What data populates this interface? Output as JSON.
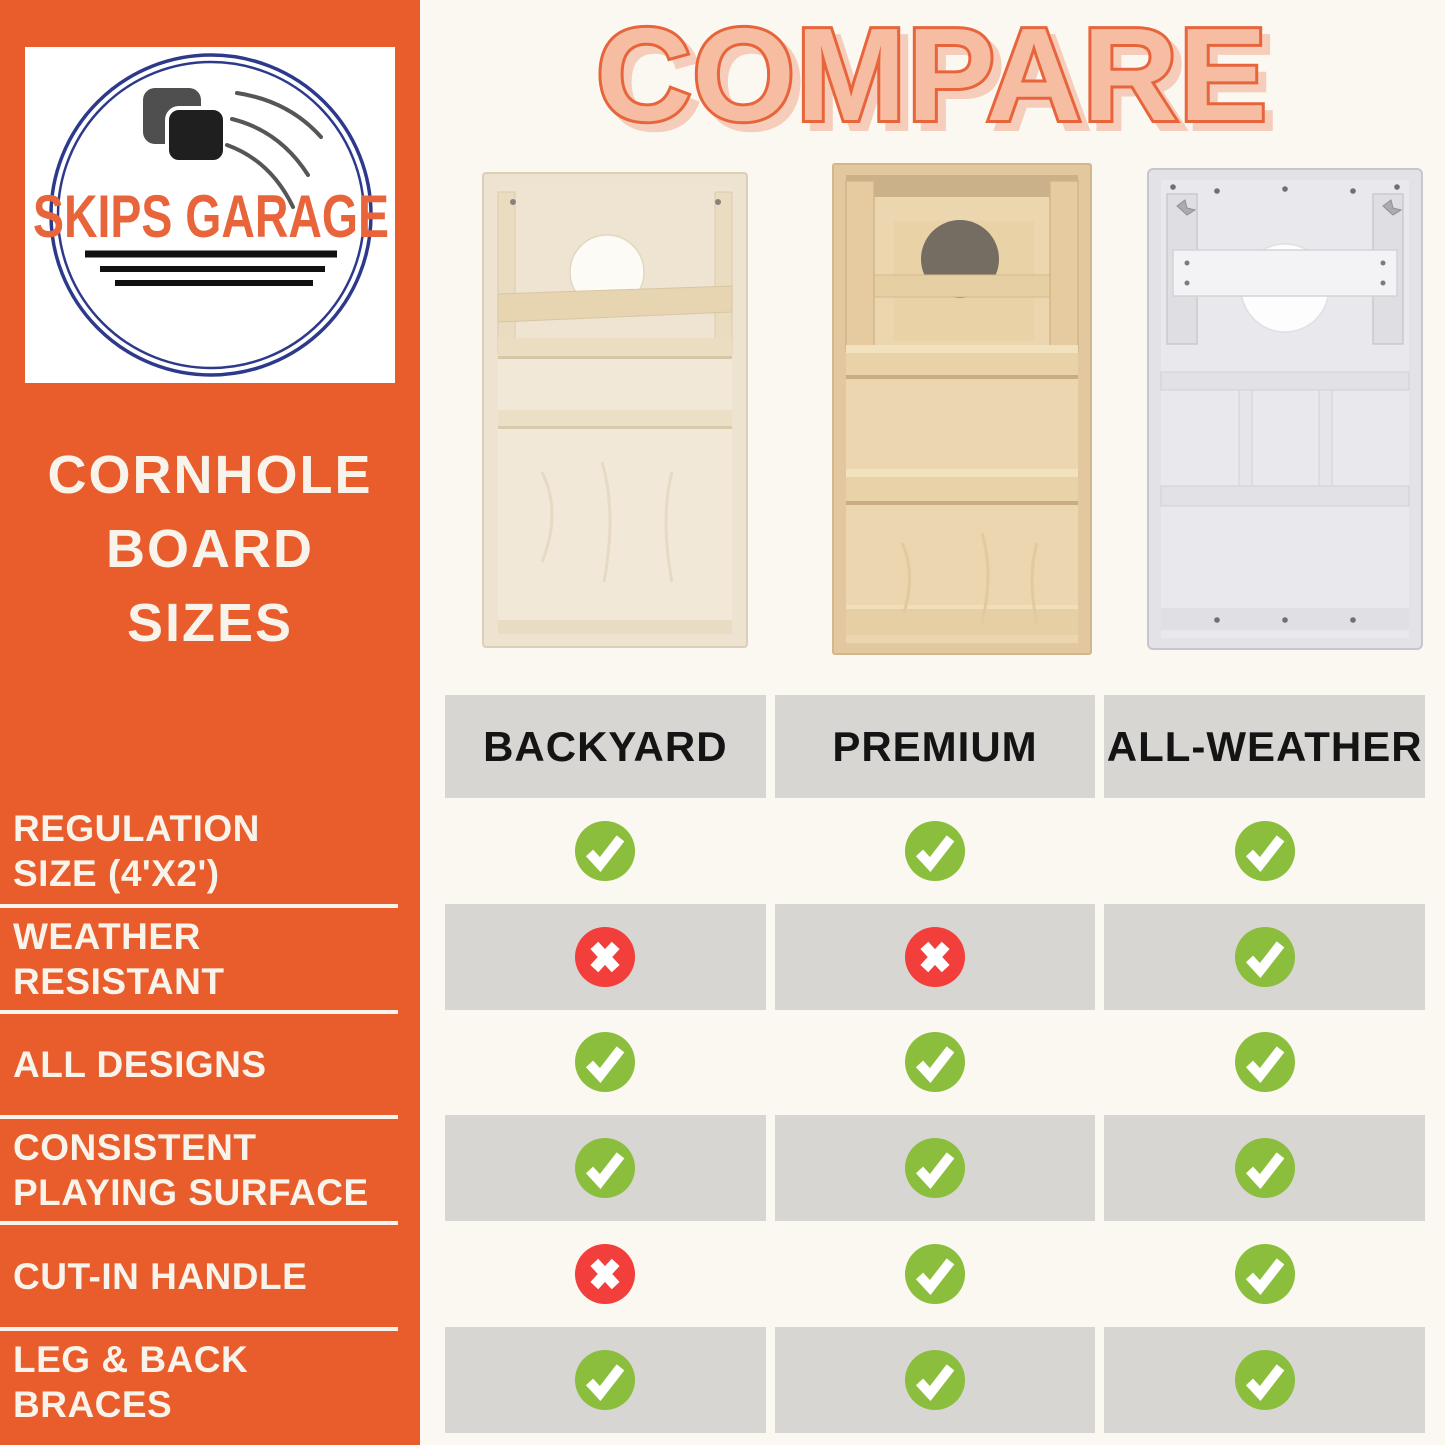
{
  "brand": {
    "logo_text": "SKIPS GARAGE"
  },
  "sidebar": {
    "title_lines": [
      "CORNHOLE",
      "BOARD",
      "SIZES"
    ],
    "features": [
      {
        "lines": [
          "REGULATION",
          "SIZE (4'X2')"
        ]
      },
      {
        "lines": [
          "WEATHER",
          "RESISTANT"
        ]
      },
      {
        "lines": [
          "ALL DESIGNS"
        ]
      },
      {
        "lines": [
          "CONSISTENT",
          "PLAYING SURFACE"
        ]
      },
      {
        "lines": [
          "CUT-IN HANDLE"
        ]
      },
      {
        "lines": [
          "LEG & BACK",
          "BRACES"
        ]
      }
    ]
  },
  "header": {
    "title": "COMPARE"
  },
  "table": {
    "columns": [
      "BACKYARD",
      "PREMIUM",
      "ALL-WEATHER"
    ],
    "rows": [
      {
        "feature": "REGULATION SIZE (4'X2')",
        "values": [
          "check",
          "check",
          "check"
        ]
      },
      {
        "feature": "WEATHER RESISTANT",
        "values": [
          "cross",
          "cross",
          "check"
        ]
      },
      {
        "feature": "ALL DESIGNS",
        "values": [
          "check",
          "check",
          "check"
        ]
      },
      {
        "feature": "CONSISTENT PLAYING SURFACE",
        "values": [
          "check",
          "check",
          "check"
        ]
      },
      {
        "feature": "CUT-IN HANDLE",
        "values": [
          "cross",
          "check",
          "check"
        ]
      },
      {
        "feature": "LEG & BACK BRACES",
        "values": [
          "check",
          "check",
          "check"
        ]
      }
    ]
  },
  "colors": {
    "sidebar_orange": "#E95C2B",
    "background_cream": "#FAF8F1",
    "cell_gray": "#D7D6D3",
    "check_green": "#8CBE3D",
    "cross_red": "#F23F3B",
    "logo_navy": "#2D3A8C",
    "logo_orange": "#E8653C",
    "title_fill": "#F6BDA3",
    "title_outline": "#E8653C",
    "title_shadow": "#F5CDBA",
    "header_text": "#141414",
    "sidebar_text": "#F8F3EB"
  }
}
